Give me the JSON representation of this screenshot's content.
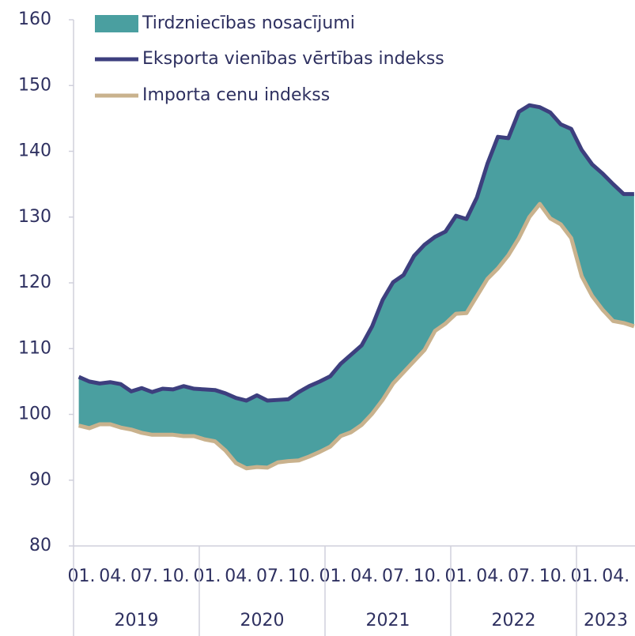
{
  "chart_data": {
    "type": "line",
    "area": {
      "name": "Tirdzniecības nosacījumi",
      "color": "#4a9fa0"
    },
    "categories": [
      "01.",
      null,
      null,
      "04.",
      null,
      null,
      "07.",
      null,
      null,
      "10.",
      null,
      null,
      "01.",
      null,
      null,
      "04.",
      null,
      null,
      "07.",
      null,
      null,
      "10.",
      null,
      null,
      "01.",
      null,
      null,
      "04.",
      null,
      null,
      "07.",
      null,
      null,
      "10.",
      null,
      null,
      "01.",
      null,
      null,
      "04.",
      null,
      null,
      "07.",
      null,
      null,
      "10.",
      null,
      null,
      "01.",
      null,
      null,
      "04.",
      null,
      null
    ],
    "years": [
      "2019",
      "2020",
      "2021",
      "2022",
      "2023"
    ],
    "series": [
      {
        "name": "Eksporta vienības vērtības indekss",
        "color": "#3d3f7e",
        "values": [
          105.7,
          105.0,
          104.7,
          104.9,
          104.6,
          103.5,
          104.0,
          103.4,
          103.9,
          103.8,
          104.3,
          103.9,
          103.8,
          103.7,
          103.2,
          102.5,
          102.1,
          102.9,
          102.1,
          102.2,
          102.3,
          103.4,
          104.3,
          105.0,
          105.8,
          107.7,
          109.1,
          110.5,
          113.4,
          117.4,
          120.1,
          121.2,
          124.1,
          125.8,
          127.0,
          127.8,
          130.2,
          129.7,
          133.0,
          138.1,
          142.2,
          142.0,
          146.0,
          147.0,
          146.7,
          145.9,
          144.1,
          143.4,
          140.2,
          138.0,
          136.6,
          135.0,
          133.5,
          133.5
        ]
      },
      {
        "name": "Importa cenu indekss",
        "color": "#c9b28d",
        "values": [
          98.3,
          97.9,
          98.5,
          98.5,
          98.0,
          97.7,
          97.2,
          96.9,
          96.9,
          96.9,
          96.7,
          96.7,
          96.2,
          95.9,
          94.5,
          92.6,
          91.8,
          92.0,
          91.9,
          92.7,
          92.9,
          93.0,
          93.6,
          94.3,
          95.1,
          96.7,
          97.3,
          98.4,
          100.1,
          102.2,
          104.7,
          106.4,
          108.1,
          109.8,
          112.7,
          113.8,
          115.3,
          115.4,
          118.0,
          120.6,
          122.2,
          124.2,
          126.8,
          130.0,
          132.0,
          129.8,
          128.9,
          126.8,
          121.0,
          118.0,
          115.9,
          114.2,
          113.9,
          113.4
        ]
      }
    ],
    "ylim": [
      80,
      160
    ],
    "yticks": [
      80,
      90,
      100,
      110,
      120,
      130,
      140,
      150,
      160
    ],
    "grid": false
  }
}
